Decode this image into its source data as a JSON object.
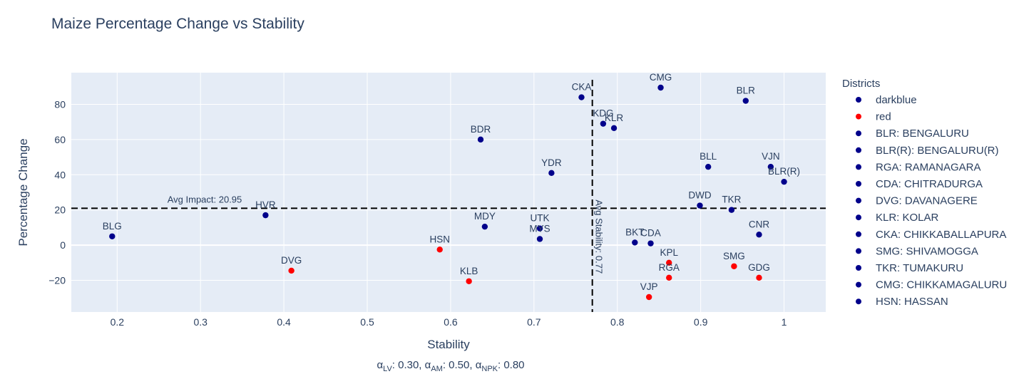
{
  "chart_data": {
    "type": "scatter",
    "title": "Maize Percentage Change vs Stability",
    "xlabel": "Stability",
    "ylabel": "Percentage Change",
    "xlim": [
      0.145,
      1.05
    ],
    "ylim": [
      -38,
      98
    ],
    "xticks": [
      0.2,
      0.3,
      0.4,
      0.5,
      0.6,
      0.7,
      0.8,
      0.9,
      1
    ],
    "xtick_labels": [
      "0.2",
      "0.3",
      "0.4",
      "0.5",
      "0.6",
      "0.7",
      "0.8",
      "0.9",
      "1"
    ],
    "yticks": [
      -20,
      0,
      20,
      40,
      60,
      80
    ],
    "ytick_labels": [
      "−20",
      "0",
      "20",
      "40",
      "60",
      "80"
    ],
    "grid": true,
    "background": "#e5ecf6",
    "colors": {
      "darkblue": "#00008b",
      "red": "#ff0000",
      "dashed_line": "#000000"
    },
    "points": [
      {
        "label": "BLG",
        "x": 0.194,
        "y": 5,
        "color": "darkblue",
        "label_pos": "top"
      },
      {
        "label": "HVR",
        "x": 0.378,
        "y": 17,
        "color": "darkblue",
        "label_pos": "top"
      },
      {
        "label": "DVG",
        "x": 0.409,
        "y": -14.5,
        "color": "red",
        "label_pos": "top"
      },
      {
        "label": "HSN",
        "x": 0.587,
        "y": -2.5,
        "color": "red",
        "label_pos": "top"
      },
      {
        "label": "KLB",
        "x": 0.622,
        "y": -20.5,
        "color": "red",
        "label_pos": "top"
      },
      {
        "label": "BDR",
        "x": 0.636,
        "y": 60,
        "color": "darkblue",
        "label_pos": "top"
      },
      {
        "label": "MDY",
        "x": 0.641,
        "y": 10.5,
        "color": "darkblue",
        "label_pos": "top"
      },
      {
        "label": "UTK",
        "x": 0.707,
        "y": 9.5,
        "color": "darkblue",
        "label_pos": "top"
      },
      {
        "label": "MYS",
        "x": 0.707,
        "y": 3.5,
        "color": "darkblue",
        "label_pos": "top"
      },
      {
        "label": "YDR",
        "x": 0.721,
        "y": 41,
        "color": "darkblue",
        "label_pos": "top"
      },
      {
        "label": "CKA",
        "x": 0.757,
        "y": 84,
        "color": "darkblue",
        "label_pos": "top"
      },
      {
        "label": "KDG",
        "x": 0.783,
        "y": 69,
        "color": "darkblue",
        "label_pos": "top"
      },
      {
        "label": "KLR",
        "x": 0.796,
        "y": 66.5,
        "color": "darkblue",
        "label_pos": "top"
      },
      {
        "label": "BKT",
        "x": 0.821,
        "y": 1.5,
        "color": "darkblue",
        "label_pos": "top"
      },
      {
        "label": "CDA",
        "x": 0.84,
        "y": 1,
        "color": "darkblue",
        "label_pos": "top"
      },
      {
        "label": "VJP",
        "x": 0.838,
        "y": -29.5,
        "color": "red",
        "label_pos": "top"
      },
      {
        "label": "CMG",
        "x": 0.852,
        "y": 89.5,
        "color": "darkblue",
        "label_pos": "top"
      },
      {
        "label": "KPL",
        "x": 0.862,
        "y": -10,
        "color": "red",
        "label_pos": "top"
      },
      {
        "label": "RGA",
        "x": 0.862,
        "y": -18.5,
        "color": "red",
        "label_pos": "top"
      },
      {
        "label": "DWD",
        "x": 0.899,
        "y": 22.5,
        "color": "darkblue",
        "label_pos": "top"
      },
      {
        "label": "BLL",
        "x": 0.909,
        "y": 44.5,
        "color": "darkblue",
        "label_pos": "top"
      },
      {
        "label": "TKR",
        "x": 0.937,
        "y": 20,
        "color": "darkblue",
        "label_pos": "top"
      },
      {
        "label": "SMG",
        "x": 0.94,
        "y": -12,
        "color": "red",
        "label_pos": "top"
      },
      {
        "label": "BLR",
        "x": 0.954,
        "y": 82,
        "color": "darkblue",
        "label_pos": "top"
      },
      {
        "label": "GDG",
        "x": 0.97,
        "y": -18.5,
        "color": "red",
        "label_pos": "top"
      },
      {
        "label": "CNR",
        "x": 0.97,
        "y": 6,
        "color": "darkblue",
        "label_pos": "top"
      },
      {
        "label": "VJN",
        "x": 0.984,
        "y": 44.5,
        "color": "darkblue",
        "label_pos": "top"
      },
      {
        "label": "BLR(R)",
        "x": 1.0,
        "y": 36,
        "color": "darkblue",
        "label_pos": "top"
      }
    ],
    "avg_impact": {
      "value": 20.95,
      "label": "Avg Impact: 20.95"
    },
    "avg_stability": {
      "value": 0.77,
      "label": "Avg Stability: 0.77"
    },
    "legend": {
      "title": "Districts",
      "placement": "right",
      "entries": [
        {
          "name": "darkblue",
          "color": "darkblue"
        },
        {
          "name": "red",
          "color": "red"
        },
        {
          "name": "BLR: BENGALURU",
          "color": "darkblue"
        },
        {
          "name": "BLR(R): BENGALURU(R)",
          "color": "darkblue"
        },
        {
          "name": "RGA: RAMANAGARA",
          "color": "darkblue"
        },
        {
          "name": "CDA: CHITRADURGA",
          "color": "darkblue"
        },
        {
          "name": "DVG: DAVANAGERE",
          "color": "darkblue"
        },
        {
          "name": "KLR: KOLAR",
          "color": "darkblue"
        },
        {
          "name": "CKA: CHIKKABALLAPURA",
          "color": "darkblue"
        },
        {
          "name": "SMG: SHIVAMOGGA",
          "color": "darkblue"
        },
        {
          "name": "TKR: TUMAKURU",
          "color": "darkblue"
        },
        {
          "name": "CMG: CHIKKAMAGALURU",
          "color": "darkblue"
        },
        {
          "name": "HSN: HASSAN",
          "color": "darkblue"
        }
      ]
    },
    "footnote": {
      "parts": [
        {
          "sym": "α",
          "sub": "LV",
          "text": ": 0.30, "
        },
        {
          "sym": "α",
          "sub": "AM",
          "text": ": 0.50, "
        },
        {
          "sym": "α",
          "sub": "NPK",
          "text": ": 0.80"
        }
      ]
    }
  }
}
